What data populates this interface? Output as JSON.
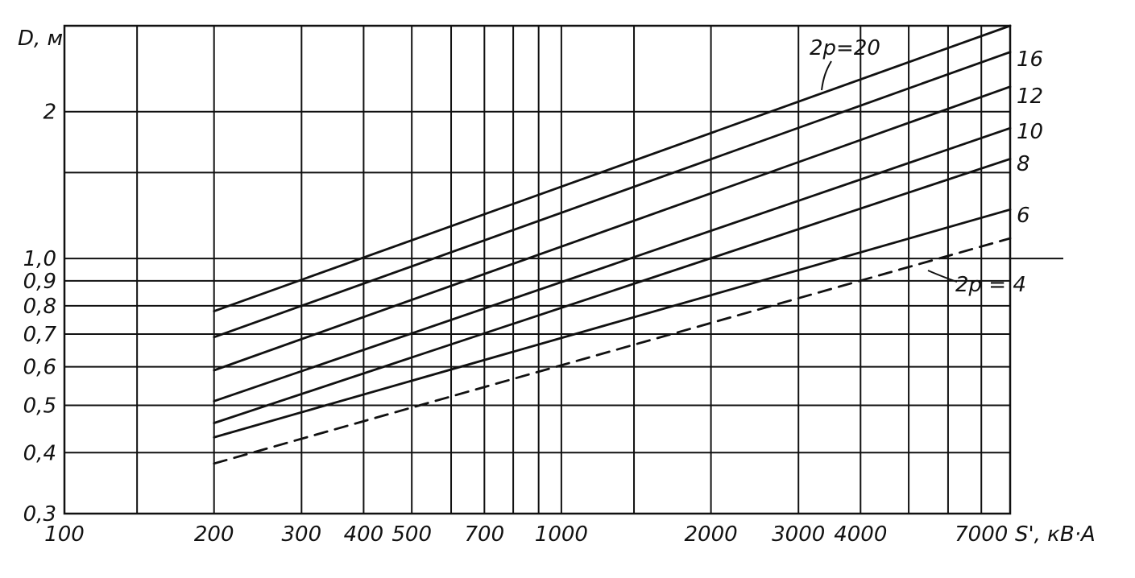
{
  "chart_data": {
    "type": "line",
    "xlabel": "S', кВ·А",
    "ylabel": "D, м",
    "xscale": "log",
    "yscale": "log",
    "xlim": [
      100,
      8000
    ],
    "ylim": [
      0.3,
      3.0
    ],
    "grid": true,
    "x_ticks": [
      {
        "value": 100,
        "label": "100"
      },
      {
        "value": 200,
        "label": "200"
      },
      {
        "value": 300,
        "label": "300"
      },
      {
        "value": 400,
        "label": "400"
      },
      {
        "value": 500,
        "label": "500"
      },
      {
        "value": 700,
        "label": "700"
      },
      {
        "value": 1000,
        "label": "1000"
      },
      {
        "value": 2000,
        "label": "2000"
      },
      {
        "value": 3000,
        "label": "3000"
      },
      {
        "value": 4000,
        "label": "4000"
      },
      {
        "value": 7000,
        "label": "7000"
      }
    ],
    "x_gridlines": [
      100,
      140,
      200,
      300,
      400,
      500,
      600,
      700,
      800,
      900,
      1000,
      1400,
      2000,
      3000,
      4000,
      5000,
      6000,
      7000,
      8000
    ],
    "y_ticks": [
      {
        "value": 0.3,
        "label": "0,3"
      },
      {
        "value": 0.4,
        "label": "0,4"
      },
      {
        "value": 0.5,
        "label": "0,5"
      },
      {
        "value": 0.6,
        "label": "0,6"
      },
      {
        "value": 0.7,
        "label": "0,7"
      },
      {
        "value": 0.8,
        "label": "0,8"
      },
      {
        "value": 0.9,
        "label": "0,9"
      },
      {
        "value": 1.0,
        "label": "1,0"
      },
      {
        "value": 2.0,
        "label": "2"
      }
    ],
    "y_gridlines": [
      0.3,
      0.4,
      0.5,
      0.6,
      0.7,
      0.8,
      0.9,
      1.0,
      1.5,
      2.0,
      3.0
    ],
    "series": [
      {
        "name": "2p=20",
        "style": "solid",
        "x": [
          200,
          8000
        ],
        "y": [
          0.78,
          3.0
        ]
      },
      {
        "name": "16",
        "style": "solid",
        "x": [
          200,
          8000
        ],
        "y": [
          0.69,
          2.65
        ]
      },
      {
        "name": "12",
        "style": "solid",
        "x": [
          200,
          8000
        ],
        "y": [
          0.59,
          2.25
        ]
      },
      {
        "name": "10",
        "style": "solid",
        "x": [
          200,
          8000
        ],
        "y": [
          0.51,
          1.85
        ]
      },
      {
        "name": "8",
        "style": "solid",
        "x": [
          200,
          8000
        ],
        "y": [
          0.46,
          1.6
        ]
      },
      {
        "name": "6",
        "style": "solid",
        "x": [
          200,
          8000
        ],
        "y": [
          0.43,
          1.26
        ]
      },
      {
        "name": "2p = 4",
        "style": "dashed",
        "x": [
          200,
          8000
        ],
        "y": [
          0.38,
          1.1
        ]
      }
    ]
  }
}
